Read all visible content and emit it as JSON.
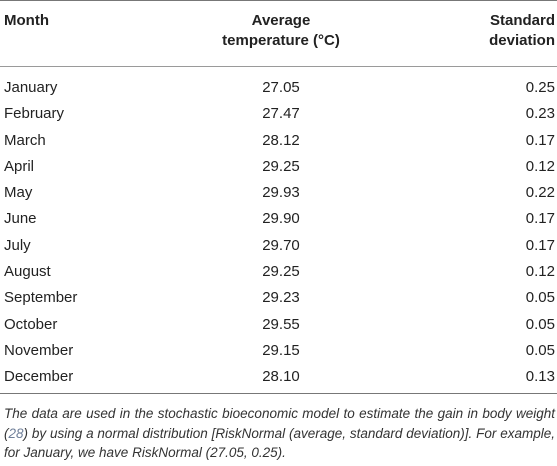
{
  "headers": {
    "month": "Month",
    "avg_line1": "Average",
    "avg_line2": "temperature (°C)",
    "sd_line1": "Standard",
    "sd_line2": "deviation"
  },
  "rows": [
    {
      "month": "January",
      "avg": "27.05",
      "sd": "0.25"
    },
    {
      "month": "February",
      "avg": "27.47",
      "sd": "0.23"
    },
    {
      "month": "March",
      "avg": "28.12",
      "sd": "0.17"
    },
    {
      "month": "April",
      "avg": "29.25",
      "sd": "0.12"
    },
    {
      "month": "May",
      "avg": "29.93",
      "sd": "0.22"
    },
    {
      "month": "June",
      "avg": "29.90",
      "sd": "0.17"
    },
    {
      "month": "July",
      "avg": "29.70",
      "sd": "0.17"
    },
    {
      "month": "August",
      "avg": "29.25",
      "sd": "0.12"
    },
    {
      "month": "September",
      "avg": "29.23",
      "sd": "0.05"
    },
    {
      "month": "October",
      "avg": "29.55",
      "sd": "0.05"
    },
    {
      "month": "November",
      "avg": "29.15",
      "sd": "0.05"
    },
    {
      "month": "December",
      "avg": "28.10",
      "sd": "0.13"
    }
  ],
  "footnote": {
    "before_ref": "The data are used in the stochastic bioeconomic model to estimate the gain in body weight (",
    "ref": "28",
    "after_ref": ") by using a normal distribution [RiskNormal (average, standard deviation)]. For example, for January, we have RiskNormal (27.05, 0.25)."
  }
}
